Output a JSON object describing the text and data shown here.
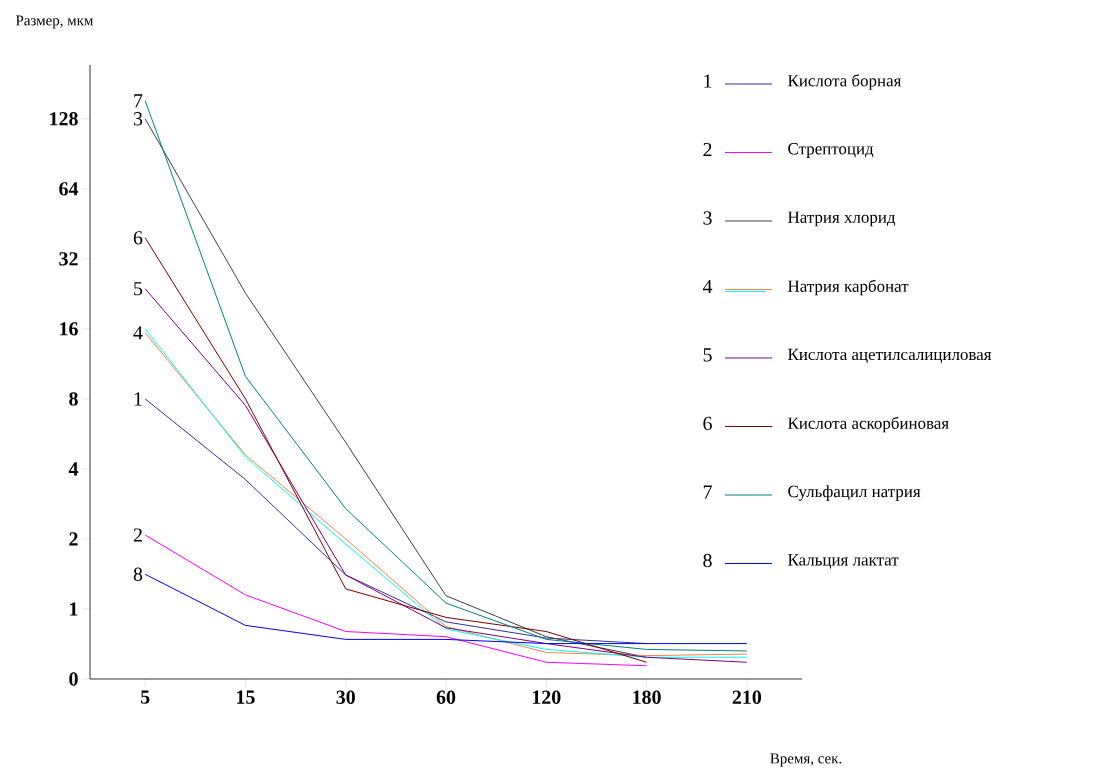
{
  "chart_data": {
    "type": "line",
    "xlabel": "Время, сек.",
    "ylabel": "Размер, мкм",
    "log": "y",
    "legend": "right",
    "marker": "none",
    "line_style": "solid",
    "categories": [
      "5",
      "15",
      "30",
      "60",
      "120",
      "180",
      "210"
    ],
    "ylim": [
      0.5,
      218
    ],
    "yticks": [
      {
        "value": 0.5,
        "label": "0"
      },
      1,
      2,
      4,
      8,
      16,
      32,
      64,
      128
    ],
    "series": [
      {
        "name": "Кислота борная",
        "color": "#333399",
        "values": [
          8,
          3.6,
          1.4,
          0.88,
          0.75,
          0.71,
          null
        ]
      },
      {
        "name": "Стрептоцид",
        "color": "#ff00ff",
        "values": [
          2.08,
          1.15,
          0.8,
          0.76,
          0.59,
          0.57,
          null
        ]
      },
      {
        "name": "Натрия хлорид",
        "color": "#404040",
        "values": [
          128,
          22.8,
          5.2,
          1.14,
          0.76,
          0.62,
          null
        ]
      },
      {
        "name": "Натрия карбонат",
        "color": "#ff8040",
        "values": [
          15.4,
          4.6,
          2.0,
          0.84,
          0.65,
          0.63,
          0.64
        ]
      },
      {
        "color": "#00ffff",
        "values": [
          16,
          4.5,
          1.9,
          0.82,
          0.67,
          0.62,
          0.62
        ]
      },
      {
        "name": "Кислота ацетилсалициловая",
        "color": "#800080",
        "values": [
          23.8,
          7.5,
          1.4,
          0.83,
          0.71,
          0.62,
          0.59
        ]
      },
      {
        "name": "Кислота аскорбиновая",
        "color": "#800000",
        "values": [
          39.4,
          8,
          1.22,
          0.92,
          0.8,
          0.59,
          null
        ]
      },
      {
        "name": "Сульфацил натрия",
        "color": "#008080",
        "values": [
          153,
          10,
          2.7,
          1.06,
          0.74,
          0.67,
          0.66
        ]
      },
      {
        "name": "Кальция лактат",
        "color": "#0000ff",
        "values": [
          1.41,
          0.85,
          0.74,
          0.74,
          0.71,
          0.71,
          0.71
        ]
      }
    ],
    "annotations": [
      {
        "text": "1",
        "x": "5",
        "y": 8
      },
      {
        "text": "2",
        "x": "5",
        "y": 2.08
      },
      {
        "text": "3",
        "x": "5",
        "y": 128
      },
      {
        "text": "4",
        "x": "5",
        "y": 15.4
      },
      {
        "text": "5",
        "x": "5",
        "y": 23.8
      },
      {
        "text": "6",
        "x": "5",
        "y": 39.4
      },
      {
        "text": "7",
        "x": "5",
        "y": 153
      },
      {
        "text": "8",
        "x": "5",
        "y": 1.41
      }
    ]
  }
}
